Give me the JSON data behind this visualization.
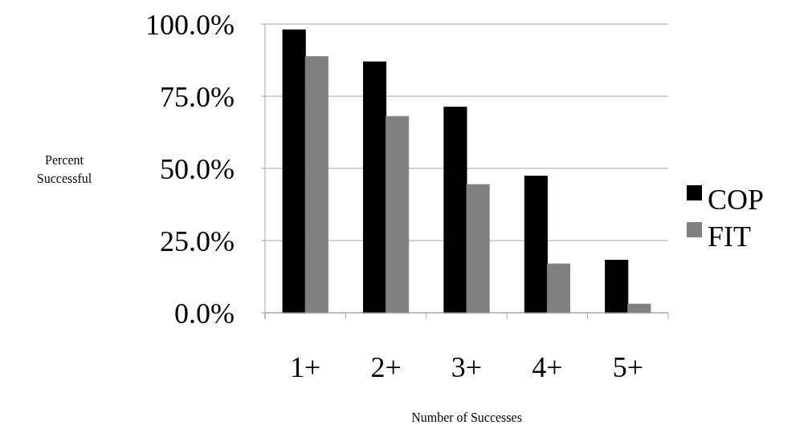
{
  "chart_data": {
    "type": "bar",
    "xlabel": "Number of Successes",
    "ylabel": "Percent Successful",
    "categories": [
      "1+",
      "2+",
      "3+",
      "4+",
      "5+"
    ],
    "series": [
      {
        "name": "COP",
        "color": "#000000",
        "values": [
          98.0,
          86.9,
          71.2,
          47.3,
          18.2
        ]
      },
      {
        "name": "FIT",
        "color": "#808080",
        "values": [
          88.7,
          68.0,
          44.4,
          16.9,
          3.0
        ]
      }
    ],
    "ylim": [
      0,
      100
    ],
    "yticks": [
      {
        "value": 0,
        "label": "0.0%"
      },
      {
        "value": 25,
        "label": "25.0%"
      },
      {
        "value": 50,
        "label": "50.0%"
      },
      {
        "value": 75,
        "label": "75.0%"
      },
      {
        "value": 100,
        "label": "100.0%"
      }
    ],
    "grid": "y",
    "legend": "right"
  }
}
